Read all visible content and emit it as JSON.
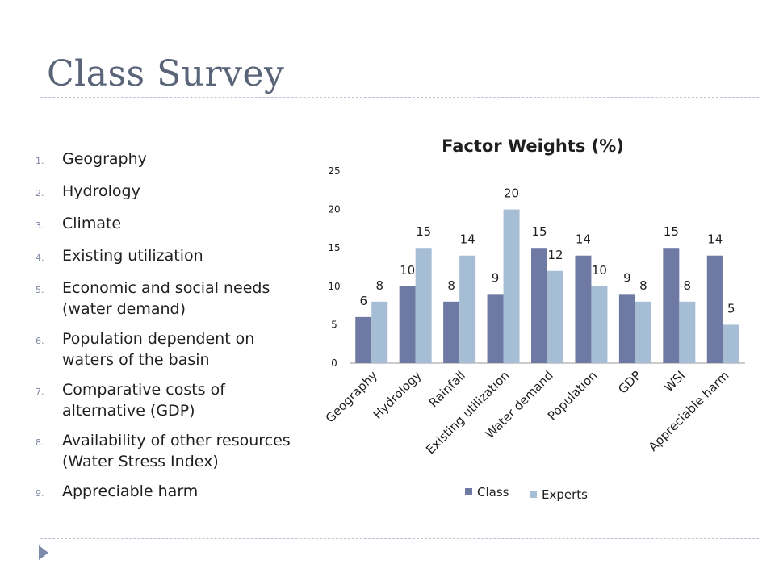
{
  "slide": {
    "title": "Class Survey",
    "list": [
      {
        "num": "1.",
        "text": "Geography"
      },
      {
        "num": "2.",
        "text": "Hydrology"
      },
      {
        "num": "3.",
        "text": "Climate"
      },
      {
        "num": "4.",
        "text": "Existing utilization"
      },
      {
        "num": "5.",
        "text": "Economic and social needs (water demand)"
      },
      {
        "num": "6.",
        "text": "Population dependent on waters of the basin"
      },
      {
        "num": "7.",
        "text": "Comparative costs of alternative (GDP)"
      },
      {
        "num": "8.",
        "text": "Availability of other resources (Water Stress Index)"
      },
      {
        "num": "9.",
        "text": "Appreciable harm"
      }
    ]
  },
  "chart_data": {
    "type": "bar",
    "title": "Factor Weights (%)",
    "categories": [
      "Geography",
      "Hydrology",
      "Rainfall",
      "Existing utilization",
      "Water demand",
      "Population",
      "GDP",
      "WSI",
      "Appreciable harm"
    ],
    "series": [
      {
        "name": "Class",
        "values": [
          6,
          10,
          8,
          9,
          15,
          14,
          9,
          15,
          14
        ],
        "color": "#6e7aa3"
      },
      {
        "name": "Experts",
        "values": [
          8,
          15,
          14,
          20,
          12,
          10,
          8,
          8,
          5
        ],
        "color": "#a6bdd6"
      }
    ],
    "ylim": [
      0,
      25
    ],
    "yticks": [
      0,
      5,
      10,
      15,
      20,
      25
    ],
    "grid": false,
    "legend": "bottom"
  }
}
